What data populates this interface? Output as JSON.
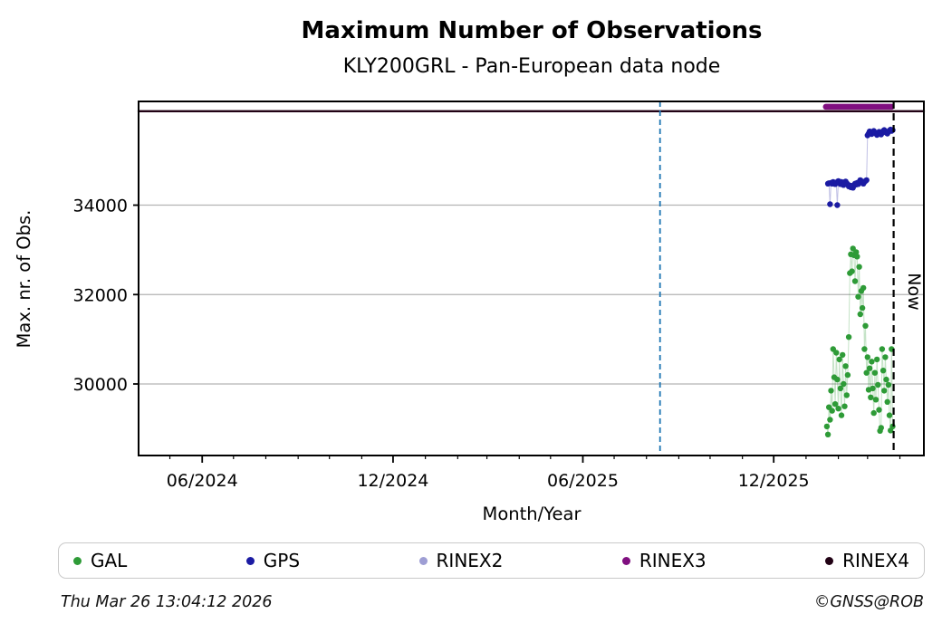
{
  "header": {
    "title": "Maximum Number of Observations",
    "subtitle": "KLY200GRL - Pan-European data node"
  },
  "footer": {
    "timestamp": "Thu Mar 26 13:04:12 2026",
    "credit": "©GNSS@ROB"
  },
  "legend": [
    {
      "label": "GAL",
      "color": "#2e9b37"
    },
    {
      "label": "GPS",
      "color": "#1b1ba3"
    },
    {
      "label": "RINEX2",
      "color": "#9e9ed4"
    },
    {
      "label": "RINEX3",
      "color": "#800f80"
    },
    {
      "label": "RINEX4",
      "color": "#210114"
    }
  ],
  "chart_data": {
    "type": "scatter",
    "title": "Maximum Number of Observations",
    "subtitle": "KLY200GRL - Pan-European data node",
    "xlabel": "Month/Year",
    "ylabel": "Max. nr. of Obs.",
    "x_range": [
      "2024-04-01",
      "2026-04-24"
    ],
    "ylim": [
      28400,
      36320
    ],
    "grid": "horizontal-only",
    "gridline_color": "#b3b3b3",
    "legend_position": "bottom",
    "y_ticks": [
      30000,
      32000,
      34000
    ],
    "x_major_ticks": [
      {
        "date": "2024-06-01",
        "label": "06/2024"
      },
      {
        "date": "2024-12-01",
        "label": "12/2024"
      },
      {
        "date": "2025-06-01",
        "label": "06/2025"
      },
      {
        "date": "2025-12-01",
        "label": "12/2025"
      }
    ],
    "x_minor_ticks": "monthly",
    "vlines": [
      {
        "date": "2025-08-14",
        "color": "#1f77b4",
        "style": "dashed",
        "label": ""
      },
      {
        "date": "2026-03-26",
        "color": "#000000",
        "style": "dashed",
        "label": "Now"
      }
    ],
    "now_label": "Now",
    "series": [
      {
        "name": "GAL",
        "color": "#2e9b37",
        "style": "dots-connected",
        "points": [
          [
            "2026-01-21",
            29050
          ],
          [
            "2026-01-22",
            28870
          ],
          [
            "2026-01-23",
            29480
          ],
          [
            "2026-01-24",
            29200
          ],
          [
            "2026-01-25",
            29850
          ],
          [
            "2026-01-26",
            29400
          ],
          [
            "2026-01-27",
            30780
          ],
          [
            "2026-01-28",
            30150
          ],
          [
            "2026-01-29",
            29550
          ],
          [
            "2026-01-30",
            30700
          ],
          [
            "2026-01-31",
            30100
          ],
          [
            "2026-02-01",
            29450
          ],
          [
            "2026-02-02",
            30550
          ],
          [
            "2026-02-03",
            29900
          ],
          [
            "2026-02-04",
            29300
          ],
          [
            "2026-02-05",
            30650
          ],
          [
            "2026-02-06",
            30000
          ],
          [
            "2026-02-07",
            29500
          ],
          [
            "2026-02-08",
            30400
          ],
          [
            "2026-02-09",
            29750
          ],
          [
            "2026-02-10",
            30200
          ],
          [
            "2026-02-11",
            31050
          ],
          [
            "2026-02-12",
            32480
          ],
          [
            "2026-02-13",
            32900
          ],
          [
            "2026-02-14",
            32520
          ],
          [
            "2026-02-15",
            33030
          ],
          [
            "2026-02-16",
            32880
          ],
          [
            "2026-02-17",
            32300
          ],
          [
            "2026-02-18",
            32950
          ],
          [
            "2026-02-19",
            32850
          ],
          [
            "2026-02-20",
            31950
          ],
          [
            "2026-02-21",
            32620
          ],
          [
            "2026-02-22",
            31560
          ],
          [
            "2026-02-23",
            32080
          ],
          [
            "2026-02-24",
            31700
          ],
          [
            "2026-02-25",
            32150
          ],
          [
            "2026-02-26",
            30780
          ],
          [
            "2026-02-27",
            31300
          ],
          [
            "2026-02-28",
            30250
          ],
          [
            "2026-03-01",
            30600
          ],
          [
            "2026-03-02",
            29870
          ],
          [
            "2026-03-03",
            30350
          ],
          [
            "2026-03-04",
            29700
          ],
          [
            "2026-03-05",
            30500
          ],
          [
            "2026-03-06",
            29900
          ],
          [
            "2026-03-07",
            29350
          ],
          [
            "2026-03-08",
            30250
          ],
          [
            "2026-03-09",
            29650
          ],
          [
            "2026-03-10",
            30550
          ],
          [
            "2026-03-11",
            29980
          ],
          [
            "2026-03-12",
            29420
          ],
          [
            "2026-03-13",
            28950
          ],
          [
            "2026-03-14",
            29020
          ],
          [
            "2026-03-15",
            30780
          ],
          [
            "2026-03-16",
            30300
          ],
          [
            "2026-03-17",
            29850
          ],
          [
            "2026-03-18",
            30600
          ],
          [
            "2026-03-19",
            30100
          ],
          [
            "2026-03-20",
            29600
          ],
          [
            "2026-03-21",
            29980
          ],
          [
            "2026-03-22",
            29300
          ],
          [
            "2026-03-23",
            28960
          ],
          [
            "2026-03-24",
            30780
          ],
          [
            "2026-03-25",
            29050
          ]
        ]
      },
      {
        "name": "GPS",
        "color": "#1b1ba3",
        "style": "dots-connected",
        "points": [
          [
            "2026-01-22",
            34480
          ],
          [
            "2026-01-23",
            34490
          ],
          [
            "2026-01-24",
            34020
          ],
          [
            "2026-01-25",
            34500
          ],
          [
            "2026-01-26",
            34480
          ],
          [
            "2026-01-27",
            34520
          ],
          [
            "2026-01-28",
            34500
          ],
          [
            "2026-01-29",
            34470
          ],
          [
            "2026-01-30",
            34510
          ],
          [
            "2026-01-31",
            34000
          ],
          [
            "2026-02-01",
            34540
          ],
          [
            "2026-02-02",
            34500
          ],
          [
            "2026-02-03",
            34470
          ],
          [
            "2026-02-04",
            34520
          ],
          [
            "2026-02-05",
            34480
          ],
          [
            "2026-02-06",
            34450
          ],
          [
            "2026-02-07",
            34500
          ],
          [
            "2026-02-08",
            34530
          ],
          [
            "2026-02-09",
            34490
          ],
          [
            "2026-02-10",
            34460
          ],
          [
            "2026-02-11",
            34420
          ],
          [
            "2026-02-12",
            34440
          ],
          [
            "2026-02-13",
            34400
          ],
          [
            "2026-02-14",
            34430
          ],
          [
            "2026-02-15",
            34390
          ],
          [
            "2026-02-16",
            34450
          ],
          [
            "2026-02-17",
            34480
          ],
          [
            "2026-02-18",
            34460
          ],
          [
            "2026-02-19",
            34500
          ],
          [
            "2026-02-20",
            34470
          ],
          [
            "2026-02-21",
            34520
          ],
          [
            "2026-02-22",
            34560
          ],
          [
            "2026-02-23",
            34540
          ],
          [
            "2026-02-24",
            34500
          ],
          [
            "2026-02-25",
            34480
          ],
          [
            "2026-02-26",
            34520
          ],
          [
            "2026-02-27",
            34540
          ],
          [
            "2026-02-28",
            34560
          ],
          [
            "2026-03-01",
            35560
          ],
          [
            "2026-03-02",
            35600
          ],
          [
            "2026-03-03",
            35650
          ],
          [
            "2026-03-04",
            35620
          ],
          [
            "2026-03-05",
            35590
          ],
          [
            "2026-03-06",
            35640
          ],
          [
            "2026-03-07",
            35660
          ],
          [
            "2026-03-08",
            35630
          ],
          [
            "2026-03-09",
            35600
          ],
          [
            "2026-03-10",
            35570
          ],
          [
            "2026-03-11",
            35610
          ],
          [
            "2026-03-12",
            35640
          ],
          [
            "2026-03-13",
            35600
          ],
          [
            "2026-03-14",
            35580
          ],
          [
            "2026-03-15",
            35620
          ],
          [
            "2026-03-16",
            35660
          ],
          [
            "2026-03-17",
            35680
          ],
          [
            "2026-03-18",
            35650
          ],
          [
            "2026-03-19",
            35620
          ],
          [
            "2026-03-20",
            35600
          ],
          [
            "2026-03-21",
            35640
          ],
          [
            "2026-03-22",
            35670
          ],
          [
            "2026-03-23",
            35690
          ],
          [
            "2026-03-24",
            35660
          ],
          [
            "2026-03-25",
            35680
          ]
        ]
      },
      {
        "name": "RINEX2",
        "color": "#9e9ed4",
        "style": "dots-connected",
        "points": []
      },
      {
        "name": "RINEX3",
        "color": "#800f80",
        "style": "thick-band",
        "band_width": 6.5,
        "points": [
          [
            "2026-01-20",
            36200
          ],
          [
            "2026-03-24",
            36200
          ]
        ]
      },
      {
        "name": "RINEX4",
        "color": "#210114",
        "style": "hline",
        "line_width": 2.4,
        "points": [
          [
            "2024-04-01",
            36100
          ],
          [
            "2026-04-24",
            36100
          ]
        ]
      }
    ]
  }
}
